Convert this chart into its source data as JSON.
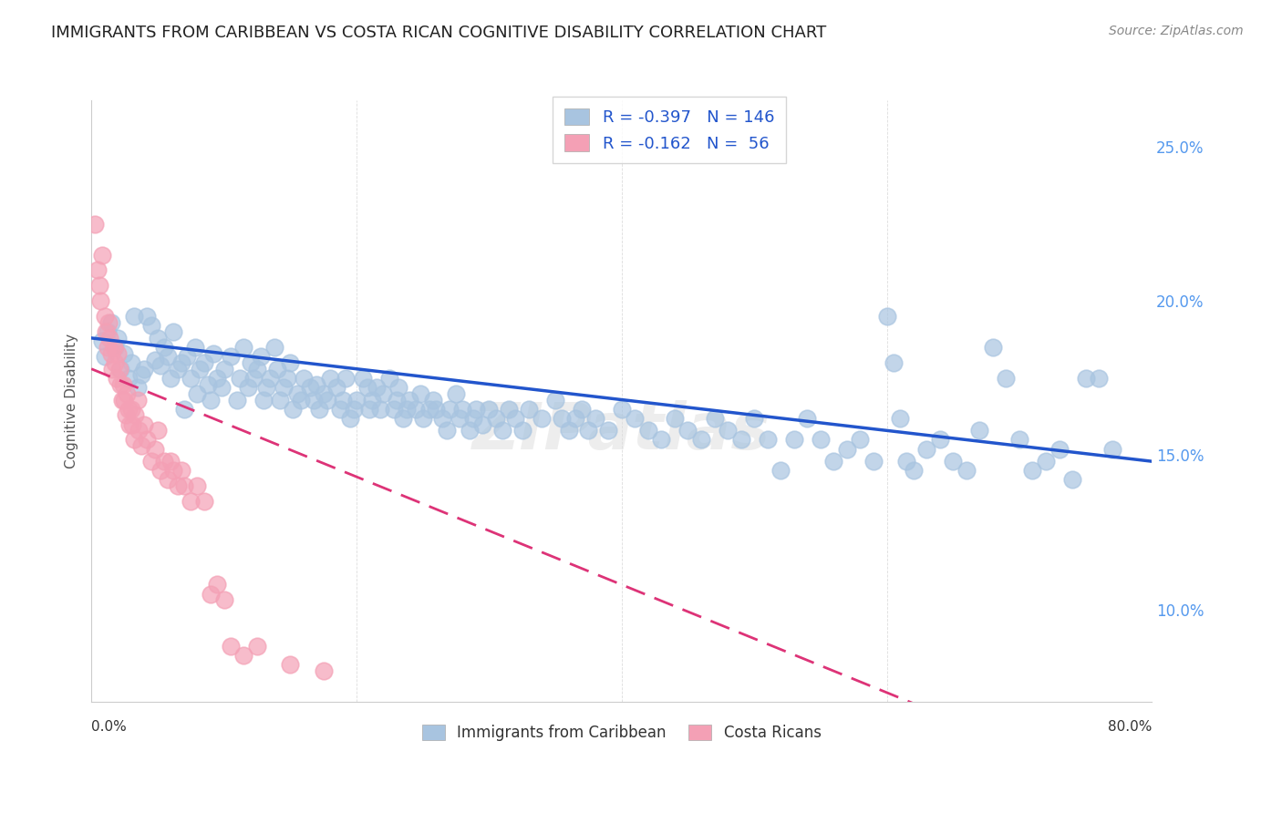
{
  "title": "IMMIGRANTS FROM CARIBBEAN VS COSTA RICAN COGNITIVE DISABILITY CORRELATION CHART",
  "source": "Source: ZipAtlas.com",
  "ylabel": "Cognitive Disability",
  "watermark": "ZIPatlas",
  "legend_blue_label": "Immigrants from Caribbean",
  "legend_pink_label": "Costa Ricans",
  "blue_R": -0.397,
  "blue_N": 146,
  "pink_R": -0.162,
  "pink_N": 56,
  "xmin": 0.0,
  "xmax": 0.8,
  "ymin": 0.07,
  "ymax": 0.265,
  "y_ticks": [
    0.1,
    0.15,
    0.2,
    0.25
  ],
  "y_tick_labels": [
    "10.0%",
    "15.0%",
    "20.0%",
    "25.0%"
  ],
  "x_ticks": [
    0.0,
    0.2,
    0.4,
    0.6,
    0.8
  ],
  "blue_color": "#a8c4e0",
  "blue_line_color": "#2255cc",
  "pink_color": "#f4a0b5",
  "pink_line_color": "#dd3377",
  "background_color": "#ffffff",
  "title_color": "#222222",
  "title_fontsize": 13,
  "axis_label_color": "#555555",
  "right_tick_color": "#5599ee",
  "blue_scatter": [
    [
      0.008,
      0.187
    ],
    [
      0.01,
      0.182
    ],
    [
      0.012,
      0.19
    ],
    [
      0.015,
      0.193
    ],
    [
      0.018,
      0.185
    ],
    [
      0.02,
      0.188
    ],
    [
      0.022,
      0.178
    ],
    [
      0.025,
      0.183
    ],
    [
      0.028,
      0.175
    ],
    [
      0.03,
      0.18
    ],
    [
      0.032,
      0.195
    ],
    [
      0.035,
      0.172
    ],
    [
      0.038,
      0.176
    ],
    [
      0.04,
      0.178
    ],
    [
      0.042,
      0.195
    ],
    [
      0.045,
      0.192
    ],
    [
      0.048,
      0.181
    ],
    [
      0.05,
      0.188
    ],
    [
      0.052,
      0.179
    ],
    [
      0.055,
      0.185
    ],
    [
      0.058,
      0.182
    ],
    [
      0.06,
      0.175
    ],
    [
      0.062,
      0.19
    ],
    [
      0.065,
      0.178
    ],
    [
      0.068,
      0.18
    ],
    [
      0.07,
      0.165
    ],
    [
      0.072,
      0.182
    ],
    [
      0.075,
      0.175
    ],
    [
      0.078,
      0.185
    ],
    [
      0.08,
      0.17
    ],
    [
      0.082,
      0.178
    ],
    [
      0.085,
      0.18
    ],
    [
      0.088,
      0.173
    ],
    [
      0.09,
      0.168
    ],
    [
      0.092,
      0.183
    ],
    [
      0.095,
      0.175
    ],
    [
      0.098,
      0.172
    ],
    [
      0.1,
      0.178
    ],
    [
      0.105,
      0.182
    ],
    [
      0.11,
      0.168
    ],
    [
      0.112,
      0.175
    ],
    [
      0.115,
      0.185
    ],
    [
      0.118,
      0.172
    ],
    [
      0.12,
      0.18
    ],
    [
      0.122,
      0.175
    ],
    [
      0.125,
      0.178
    ],
    [
      0.128,
      0.182
    ],
    [
      0.13,
      0.168
    ],
    [
      0.132,
      0.172
    ],
    [
      0.135,
      0.175
    ],
    [
      0.138,
      0.185
    ],
    [
      0.14,
      0.178
    ],
    [
      0.142,
      0.168
    ],
    [
      0.145,
      0.172
    ],
    [
      0.148,
      0.175
    ],
    [
      0.15,
      0.18
    ],
    [
      0.152,
      0.165
    ],
    [
      0.155,
      0.17
    ],
    [
      0.158,
      0.168
    ],
    [
      0.16,
      0.175
    ],
    [
      0.165,
      0.172
    ],
    [
      0.168,
      0.168
    ],
    [
      0.17,
      0.173
    ],
    [
      0.172,
      0.165
    ],
    [
      0.175,
      0.17
    ],
    [
      0.178,
      0.168
    ],
    [
      0.18,
      0.175
    ],
    [
      0.185,
      0.172
    ],
    [
      0.188,
      0.165
    ],
    [
      0.19,
      0.168
    ],
    [
      0.192,
      0.175
    ],
    [
      0.195,
      0.162
    ],
    [
      0.198,
      0.165
    ],
    [
      0.2,
      0.168
    ],
    [
      0.205,
      0.175
    ],
    [
      0.208,
      0.172
    ],
    [
      0.21,
      0.165
    ],
    [
      0.212,
      0.168
    ],
    [
      0.215,
      0.172
    ],
    [
      0.218,
      0.165
    ],
    [
      0.22,
      0.17
    ],
    [
      0.225,
      0.175
    ],
    [
      0.228,
      0.165
    ],
    [
      0.23,
      0.168
    ],
    [
      0.232,
      0.172
    ],
    [
      0.235,
      0.162
    ],
    [
      0.238,
      0.165
    ],
    [
      0.24,
      0.168
    ],
    [
      0.245,
      0.165
    ],
    [
      0.248,
      0.17
    ],
    [
      0.25,
      0.162
    ],
    [
      0.255,
      0.165
    ],
    [
      0.258,
      0.168
    ],
    [
      0.26,
      0.165
    ],
    [
      0.265,
      0.162
    ],
    [
      0.268,
      0.158
    ],
    [
      0.27,
      0.165
    ],
    [
      0.275,
      0.17
    ],
    [
      0.278,
      0.162
    ],
    [
      0.28,
      0.165
    ],
    [
      0.285,
      0.158
    ],
    [
      0.288,
      0.162
    ],
    [
      0.29,
      0.165
    ],
    [
      0.295,
      0.16
    ],
    [
      0.3,
      0.165
    ],
    [
      0.305,
      0.162
    ],
    [
      0.31,
      0.158
    ],
    [
      0.315,
      0.165
    ],
    [
      0.32,
      0.162
    ],
    [
      0.325,
      0.158
    ],
    [
      0.33,
      0.165
    ],
    [
      0.34,
      0.162
    ],
    [
      0.35,
      0.168
    ],
    [
      0.355,
      0.162
    ],
    [
      0.36,
      0.158
    ],
    [
      0.365,
      0.162
    ],
    [
      0.37,
      0.165
    ],
    [
      0.375,
      0.158
    ],
    [
      0.38,
      0.162
    ],
    [
      0.39,
      0.158
    ],
    [
      0.4,
      0.165
    ],
    [
      0.41,
      0.162
    ],
    [
      0.42,
      0.158
    ],
    [
      0.43,
      0.155
    ],
    [
      0.44,
      0.162
    ],
    [
      0.45,
      0.158
    ],
    [
      0.46,
      0.155
    ],
    [
      0.47,
      0.162
    ],
    [
      0.48,
      0.158
    ],
    [
      0.49,
      0.155
    ],
    [
      0.5,
      0.162
    ],
    [
      0.51,
      0.155
    ],
    [
      0.52,
      0.145
    ],
    [
      0.53,
      0.155
    ],
    [
      0.54,
      0.162
    ],
    [
      0.55,
      0.155
    ],
    [
      0.56,
      0.148
    ],
    [
      0.57,
      0.152
    ],
    [
      0.58,
      0.155
    ],
    [
      0.59,
      0.148
    ],
    [
      0.6,
      0.195
    ],
    [
      0.605,
      0.18
    ],
    [
      0.61,
      0.162
    ],
    [
      0.615,
      0.148
    ],
    [
      0.62,
      0.145
    ],
    [
      0.63,
      0.152
    ],
    [
      0.64,
      0.155
    ],
    [
      0.65,
      0.148
    ],
    [
      0.66,
      0.145
    ],
    [
      0.67,
      0.158
    ],
    [
      0.68,
      0.185
    ],
    [
      0.69,
      0.175
    ],
    [
      0.7,
      0.155
    ],
    [
      0.71,
      0.145
    ],
    [
      0.72,
      0.148
    ],
    [
      0.73,
      0.152
    ],
    [
      0.74,
      0.142
    ],
    [
      0.75,
      0.175
    ],
    [
      0.76,
      0.175
    ],
    [
      0.77,
      0.152
    ]
  ],
  "pink_scatter": [
    [
      0.003,
      0.225
    ],
    [
      0.005,
      0.21
    ],
    [
      0.006,
      0.205
    ],
    [
      0.007,
      0.2
    ],
    [
      0.008,
      0.215
    ],
    [
      0.01,
      0.195
    ],
    [
      0.011,
      0.19
    ],
    [
      0.012,
      0.185
    ],
    [
      0.013,
      0.193
    ],
    [
      0.014,
      0.188
    ],
    [
      0.015,
      0.183
    ],
    [
      0.016,
      0.178
    ],
    [
      0.017,
      0.185
    ],
    [
      0.018,
      0.18
    ],
    [
      0.019,
      0.175
    ],
    [
      0.02,
      0.183
    ],
    [
      0.021,
      0.178
    ],
    [
      0.022,
      0.173
    ],
    [
      0.023,
      0.168
    ],
    [
      0.024,
      0.173
    ],
    [
      0.025,
      0.168
    ],
    [
      0.026,
      0.163
    ],
    [
      0.027,
      0.17
    ],
    [
      0.028,
      0.165
    ],
    [
      0.029,
      0.16
    ],
    [
      0.03,
      0.165
    ],
    [
      0.031,
      0.16
    ],
    [
      0.032,
      0.155
    ],
    [
      0.033,
      0.163
    ],
    [
      0.035,
      0.168
    ],
    [
      0.036,
      0.158
    ],
    [
      0.038,
      0.153
    ],
    [
      0.04,
      0.16
    ],
    [
      0.042,
      0.155
    ],
    [
      0.045,
      0.148
    ],
    [
      0.048,
      0.152
    ],
    [
      0.05,
      0.158
    ],
    [
      0.052,
      0.145
    ],
    [
      0.055,
      0.148
    ],
    [
      0.058,
      0.142
    ],
    [
      0.06,
      0.148
    ],
    [
      0.062,
      0.145
    ],
    [
      0.065,
      0.14
    ],
    [
      0.068,
      0.145
    ],
    [
      0.07,
      0.14
    ],
    [
      0.075,
      0.135
    ],
    [
      0.08,
      0.14
    ],
    [
      0.085,
      0.135
    ],
    [
      0.09,
      0.105
    ],
    [
      0.095,
      0.108
    ],
    [
      0.1,
      0.103
    ],
    [
      0.105,
      0.088
    ],
    [
      0.115,
      0.085
    ],
    [
      0.125,
      0.088
    ],
    [
      0.15,
      0.082
    ],
    [
      0.175,
      0.08
    ]
  ],
  "blue_trend_y_start": 0.188,
  "blue_trend_y_end": 0.148,
  "pink_trend_y_start": 0.178,
  "pink_trend_y_end": 0.038
}
